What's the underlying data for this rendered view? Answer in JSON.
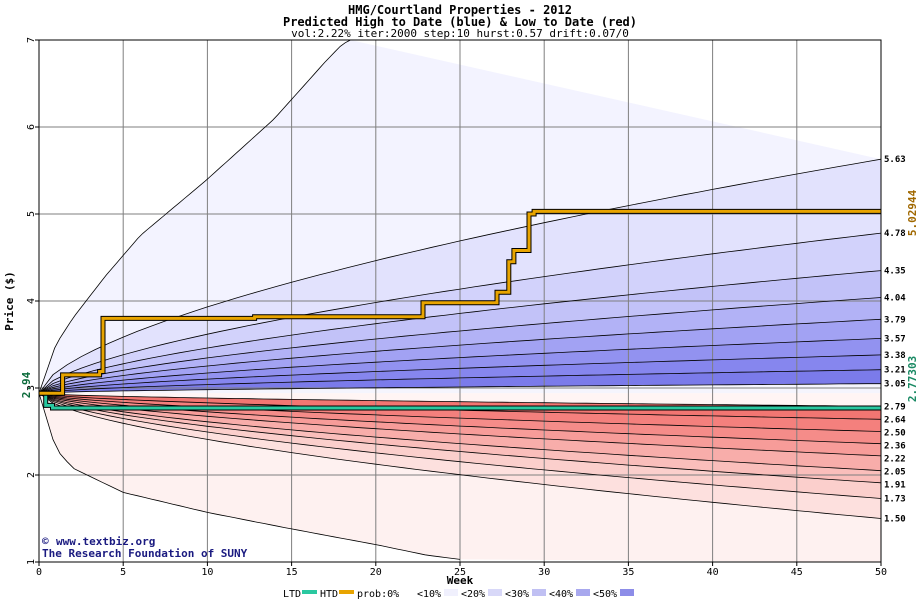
{
  "chart_data": {
    "type": "area",
    "title": "HMG/Courtland Properties - 2012",
    "subtitle": "Predicted High to Date (blue) &  Low to Date (red)",
    "params": "vol:2.22% iter:2000 step:10 hurst:0.57 drift:0.07/0",
    "xlabel": "Week",
    "ylabel": "Price ($)",
    "xlim": [
      0,
      50
    ],
    "ylim": [
      1,
      7
    ],
    "x_ticks": [
      "0",
      "5",
      "10",
      "15",
      "20",
      "25",
      "30",
      "35",
      "40",
      "45",
      "50"
    ],
    "y_ticks": [
      "1",
      "2",
      "3",
      "4",
      "5",
      "6",
      "7"
    ],
    "grid": true,
    "start_price": "2.94",
    "start_price_value": 2.94,
    "high_to_date_final": "5.02944",
    "high_to_date_final_value": 5.02944,
    "low_to_date_final": "2.77303",
    "low_to_date_final_value": 2.77303,
    "upper_band_end_labels": [
      "5.63",
      "4.78",
      "4.35",
      "4.04",
      "3.79",
      "3.57",
      "3.38",
      "3.21",
      "3.05"
    ],
    "upper_band_end_values": [
      5.63,
      4.78,
      4.35,
      4.04,
      3.79,
      3.57,
      3.38,
      3.21,
      3.05
    ],
    "lower_band_end_labels": [
      "2.79",
      "2.64",
      "2.50",
      "2.36",
      "2.22",
      "2.05",
      "1.91",
      "1.73",
      "1.50"
    ],
    "lower_band_end_values": [
      2.79,
      2.64,
      2.5,
      2.36,
      2.22,
      2.05,
      1.91,
      1.73,
      1.5
    ],
    "outer_high_bound": [
      [
        0,
        2.94
      ],
      [
        1,
        3.5
      ],
      [
        2,
        3.8
      ],
      [
        4,
        4.3
      ],
      [
        6,
        4.75
      ],
      [
        10,
        5.4
      ],
      [
        14,
        6.1
      ],
      [
        17,
        6.75
      ],
      [
        18,
        6.95
      ],
      [
        18.5,
        7.0
      ]
    ],
    "outer_low_bound": [
      [
        0,
        2.94
      ],
      [
        1,
        2.3
      ],
      [
        2,
        2.08
      ],
      [
        5,
        1.8
      ],
      [
        10,
        1.57
      ],
      [
        15,
        1.38
      ],
      [
        20,
        1.2
      ],
      [
        23,
        1.08
      ],
      [
        25,
        1.03
      ]
    ],
    "high_to_date_path": [
      [
        0,
        2.94
      ],
      [
        1.4,
        2.94
      ],
      [
        1.4,
        3.15
      ],
      [
        3.6,
        3.15
      ],
      [
        3.6,
        3.19
      ],
      [
        3.8,
        3.19
      ],
      [
        3.8,
        3.8
      ],
      [
        12.8,
        3.8
      ],
      [
        12.8,
        3.82
      ],
      [
        22.8,
        3.82
      ],
      [
        22.8,
        3.98
      ],
      [
        27.2,
        3.98
      ],
      [
        27.2,
        4.1
      ],
      [
        27.9,
        4.1
      ],
      [
        27.9,
        4.45
      ],
      [
        28.2,
        4.45
      ],
      [
        28.2,
        4.58
      ],
      [
        29.1,
        4.58
      ],
      [
        29.1,
        5.0
      ],
      [
        29.4,
        5.0
      ],
      [
        29.4,
        5.03
      ],
      [
        50,
        5.03
      ]
    ],
    "low_to_date_path": [
      [
        0,
        2.94
      ],
      [
        0.4,
        2.94
      ],
      [
        0.4,
        2.8
      ],
      [
        0.8,
        2.8
      ],
      [
        0.8,
        2.77
      ],
      [
        50,
        2.77
      ]
    ],
    "legend": {
      "ltd": "LTD",
      "htd": "HTD",
      "prob_prefix": "prob:0%",
      "bins": [
        "<10%",
        "<20%",
        "<30%",
        "<40%",
        "<50%"
      ]
    },
    "credit_url": "www.textbiz.org",
    "credit_org": "The Research Foundation of SUNY",
    "copyright_symbol": "©"
  },
  "colors": {
    "blue_bands": [
      "#f3f3ff",
      "#e2e2fd",
      "#d2d2fb",
      "#c2c2f8",
      "#b2b2f6",
      "#a2a2f3",
      "#9292f0",
      "#8686ee",
      "#7b7bea"
    ],
    "red_bands": [
      "#fef1f0",
      "#fde0de",
      "#fbcfcc",
      "#fabebb",
      "#f8adaa",
      "#f79c99",
      "#f58c89",
      "#f4807d",
      "#f27672"
    ],
    "htd_line": "#e8a400",
    "ltd_line": "#2ac8a0",
    "grid": "#7f7f7f",
    "htd_label": "#a06800",
    "ltd_label": "#1a8a64",
    "start_label": "#0a6a3a",
    "legend_swatches": [
      "#ffffff",
      "#fdfdff",
      "#ececfb",
      "#e0c8d8",
      "#cc9ccc",
      "#cc6ea0"
    ],
    "legend_swatches_right": [
      "#f0f0fd",
      "#d8d8f8",
      "#c0c0f3",
      "#a8a8ee",
      "#8d8de8"
    ]
  }
}
